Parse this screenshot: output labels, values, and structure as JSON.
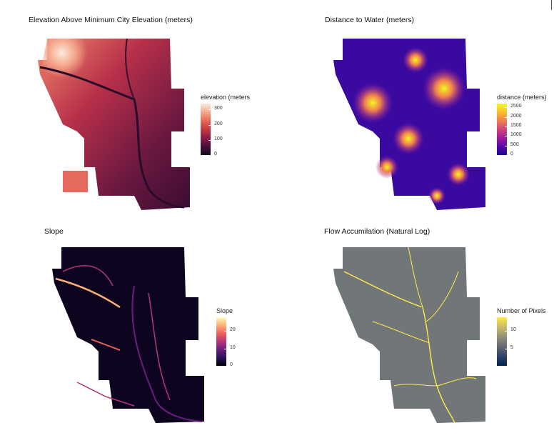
{
  "chart_data": [
    {
      "type": "heatmap",
      "title": "Elevation Above Minimum City Elevation (meters)",
      "legend_title": "elevation (meters",
      "range": [
        0,
        340
      ],
      "ticks": [
        "300",
        "200",
        "100",
        "0"
      ],
      "palette": [
        "#0a0a1e",
        "#4a0f3b",
        "#8c1d43",
        "#c43a43",
        "#e76a58",
        "#f6a98e",
        "#fbe9dc"
      ]
    },
    {
      "type": "heatmap",
      "title": "Distance to Water (meters)",
      "legend_title": "distance (meters)",
      "range": [
        0,
        2700
      ],
      "ticks": [
        "2500",
        "2000",
        "1500",
        "1000",
        "500",
        "0"
      ],
      "palette": [
        "#1a0a8e",
        "#5b06a8",
        "#a01a9c",
        "#d0457a",
        "#f07f4f",
        "#fbc02a",
        "#f0f921"
      ]
    },
    {
      "type": "heatmap",
      "title": "Slope",
      "legend_title": "Slope",
      "range": [
        0,
        28
      ],
      "ticks": [
        "20",
        "10",
        "0"
      ],
      "palette": [
        "#000004",
        "#2b115e",
        "#6a1c81",
        "#b5367a",
        "#f1605d",
        "#feb078",
        "#fcfdbf"
      ]
    },
    {
      "type": "heatmap",
      "title": "Flow Accumilation (Natural Log)",
      "legend_title": "Number of Pixels",
      "range": [
        0,
        14
      ],
      "ticks": [
        "10",
        "5"
      ],
      "palette": [
        "#00204d",
        "#31446b",
        "#666970",
        "#958f78",
        "#cbba69",
        "#ffea46"
      ]
    }
  ]
}
